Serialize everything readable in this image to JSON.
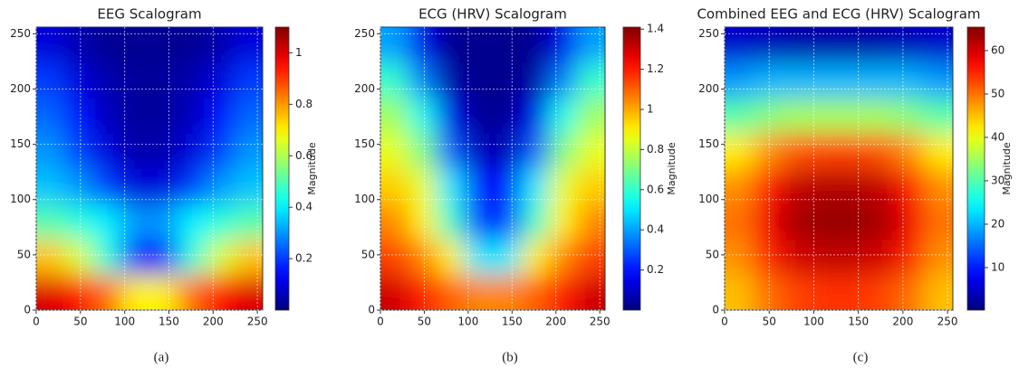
{
  "chart_data": [
    {
      "type": "heatmap",
      "title": "EEG Scalogram",
      "caption": "(a)",
      "colorbar_label": "Magnitude",
      "colormap": "jet",
      "grid": true,
      "x": [
        16,
        48,
        80,
        112,
        144,
        176,
        208,
        240
      ],
      "y": [
        16,
        48,
        80,
        112,
        144,
        176,
        208,
        240
      ],
      "z": [
        [
          1.0,
          0.95,
          0.85,
          0.7,
          0.7,
          0.85,
          0.95,
          1.0
        ],
        [
          0.75,
          0.65,
          0.45,
          0.15,
          0.15,
          0.45,
          0.65,
          0.75
        ],
        [
          0.5,
          0.45,
          0.4,
          0.3,
          0.3,
          0.4,
          0.45,
          0.5
        ],
        [
          0.35,
          0.3,
          0.2,
          0.1,
          0.1,
          0.2,
          0.3,
          0.35
        ],
        [
          0.3,
          0.2,
          0.1,
          0.05,
          0.05,
          0.1,
          0.2,
          0.3
        ],
        [
          0.25,
          0.15,
          0.07,
          0.03,
          0.03,
          0.07,
          0.15,
          0.25
        ],
        [
          0.2,
          0.1,
          0.05,
          0.03,
          0.03,
          0.05,
          0.1,
          0.2
        ],
        [
          0.1,
          0.05,
          0.02,
          0.02,
          0.02,
          0.02,
          0.05,
          0.1
        ]
      ],
      "xlim": [
        0,
        256
      ],
      "ylim": [
        0,
        256
      ],
      "xticks": [
        0,
        50,
        100,
        150,
        200,
        250
      ],
      "yticks": [
        0,
        50,
        100,
        150,
        200,
        250
      ],
      "clim": [
        0,
        1.1
      ],
      "cticks": [
        0.2,
        0.4,
        0.6,
        0.8,
        1.0
      ]
    },
    {
      "type": "heatmap",
      "title": "ECG (HRV) Scalogram",
      "caption": "(b)",
      "colorbar_label": "Magnitude",
      "colormap": "jet",
      "grid": true,
      "x": [
        16,
        48,
        80,
        112,
        144,
        176,
        208,
        240
      ],
      "y": [
        16,
        48,
        80,
        112,
        144,
        176,
        208,
        240
      ],
      "z": [
        [
          1.3,
          1.2,
          1.1,
          1.05,
          1.05,
          1.1,
          1.2,
          1.3
        ],
        [
          1.15,
          1.05,
          0.9,
          0.5,
          0.5,
          0.9,
          1.05,
          1.15
        ],
        [
          1.05,
          0.9,
          0.6,
          0.25,
          0.25,
          0.6,
          0.9,
          1.05
        ],
        [
          0.95,
          0.85,
          0.5,
          0.2,
          0.2,
          0.5,
          0.85,
          0.95
        ],
        [
          0.85,
          0.7,
          0.3,
          0.08,
          0.08,
          0.3,
          0.7,
          0.85
        ],
        [
          0.75,
          0.55,
          0.15,
          0.03,
          0.03,
          0.15,
          0.55,
          0.75
        ],
        [
          0.6,
          0.35,
          0.05,
          0.02,
          0.02,
          0.05,
          0.35,
          0.6
        ],
        [
          0.4,
          0.15,
          0.02,
          0.02,
          0.02,
          0.02,
          0.15,
          0.4
        ]
      ],
      "xlim": [
        0,
        256
      ],
      "ylim": [
        0,
        256
      ],
      "xticks": [
        0,
        50,
        100,
        150,
        200,
        250
      ],
      "yticks": [
        0,
        50,
        100,
        150,
        200,
        250
      ],
      "clim": [
        0,
        1.41
      ],
      "cticks": [
        0.2,
        0.4,
        0.6,
        0.8,
        1.0,
        1.2,
        1.4
      ]
    },
    {
      "type": "heatmap",
      "title": "Combined EEG and ECG (HRV) Scalogram",
      "caption": "(c)",
      "colorbar_label": "Magnitude",
      "colormap": "jet",
      "grid": true,
      "x": [
        16,
        48,
        80,
        112,
        144,
        176,
        208,
        240
      ],
      "y": [
        16,
        48,
        80,
        112,
        144,
        176,
        208,
        240
      ],
      "z": [
        [
          45,
          50,
          53,
          54,
          54,
          53,
          50,
          45
        ],
        [
          48,
          55,
          60,
          61,
          61,
          60,
          55,
          48
        ],
        [
          50,
          58,
          63,
          64,
          64,
          63,
          58,
          50
        ],
        [
          48,
          56,
          61,
          62,
          62,
          61,
          56,
          48
        ],
        [
          42,
          48,
          52,
          53,
          53,
          52,
          48,
          42
        ],
        [
          30,
          33,
          35,
          35,
          35,
          35,
          33,
          30
        ],
        [
          18,
          20,
          20,
          20,
          20,
          20,
          20,
          18
        ],
        [
          5,
          4,
          3,
          3,
          3,
          3,
          4,
          5
        ]
      ],
      "xlim": [
        0,
        256
      ],
      "ylim": [
        0,
        256
      ],
      "xticks": [
        0,
        50,
        100,
        150,
        200,
        250
      ],
      "yticks": [
        0,
        50,
        100,
        150,
        200,
        250
      ],
      "clim": [
        0.2,
        65.4
      ],
      "cticks": [
        10,
        20,
        30,
        40,
        50,
        60
      ]
    }
  ]
}
